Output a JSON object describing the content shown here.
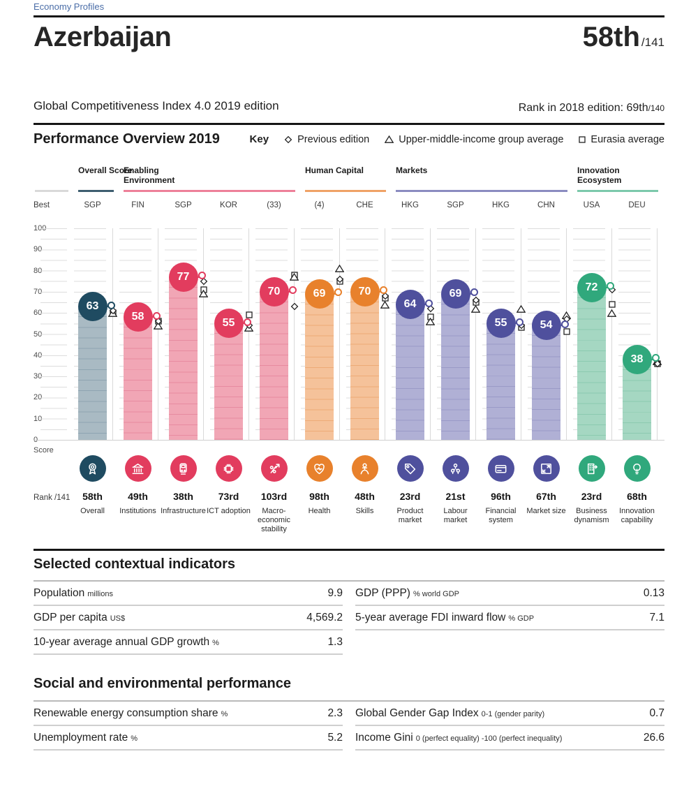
{
  "header": {
    "breadcrumb": "Economy Profiles",
    "country": "Azerbaijan",
    "rank": "58th",
    "rank_total": "/141",
    "subtitle": "Global Competitiveness Index 4.0 2019 edition",
    "previous_rank_label": "Rank in 2018 edition: 69th",
    "previous_rank_total": "/140"
  },
  "overview": {
    "title": "Performance Overview 2019",
    "key_label": "Key",
    "legend": [
      {
        "icon": "diamond-icon",
        "label": "Previous edition"
      },
      {
        "icon": "triangle-icon",
        "label": "Upper-middle-income group average"
      },
      {
        "icon": "square-icon",
        "label": "Eurasia average"
      }
    ]
  },
  "chart_data": {
    "type": "bar",
    "title": "Performance Overview 2019",
    "ylabel": "Score",
    "ylim": [
      0,
      100
    ],
    "ytick_step": 10,
    "grid": true,
    "best_row_label": "Best",
    "rank_row_label": "Rank /141",
    "legend_series": [
      "Previous edition",
      "Upper-middle-income group average",
      "Eurasia average"
    ],
    "groups": [
      {
        "label": "Overall Score",
        "line_color": "#3f5e70",
        "bubble_color": "#1f4b61",
        "bar_color": "#a9bac3",
        "stripe_color": "#8ea4b1",
        "start": 0,
        "count": 1
      },
      {
        "label": "Enabling Environment",
        "line_color": "#ed8099",
        "bubble_color": "#e23c5e",
        "bar_color": "#f1a6b5",
        "stripe_color": "#e78ba0",
        "start": 1,
        "count": 4
      },
      {
        "label": "Human Capital",
        "line_color": "#efa266",
        "bubble_color": "#e8812c",
        "bar_color": "#f5c29a",
        "stripe_color": "#edab77",
        "start": 5,
        "count": 2
      },
      {
        "label": "Markets",
        "line_color": "#8b8cc0",
        "bubble_color": "#4f509d",
        "bar_color": "#b0b0d5",
        "stripe_color": "#9a9ac7",
        "start": 7,
        "count": 4
      },
      {
        "label": "Innovation Ecosystem",
        "line_color": "#7cc9ab",
        "bubble_color": "#30a87c",
        "bar_color": "#a5d7c2",
        "stripe_color": "#8ccab0",
        "start": 11,
        "count": 2
      }
    ],
    "pillars": [
      {
        "name": "Overall",
        "best": "SGP",
        "rank": "58th",
        "score": 63,
        "previous": 61,
        "group_avg": 60,
        "eurasia_avg": 60,
        "icon": "medal-icon",
        "group": 0
      },
      {
        "name": "Institutions",
        "best": "FIN",
        "rank": "49th",
        "score": 58,
        "previous": 56,
        "group_avg": 54,
        "eurasia_avg": 56,
        "icon": "bank-icon",
        "group": 1
      },
      {
        "name": "Infrastructure",
        "best": "SGP",
        "rank": "38th",
        "score": 77,
        "previous": 75,
        "group_avg": 69,
        "eurasia_avg": 71,
        "icon": "train-icon",
        "group": 1
      },
      {
        "name": "ICT adoption",
        "best": "KOR",
        "rank": "73rd",
        "score": 55,
        "previous": 54,
        "group_avg": 53,
        "eurasia_avg": 59,
        "icon": "chip-icon",
        "group": 1
      },
      {
        "name": "Macro-economic stability",
        "best": "(33)",
        "rank": "103rd",
        "score": 70,
        "previous": 63,
        "group_avg": 77,
        "eurasia_avg": 78,
        "icon": "percent-arrow-icon",
        "group": 1
      },
      {
        "name": "Health",
        "best": "(4)",
        "rank": "98th",
        "score": 69,
        "previous": 76,
        "group_avg": 81,
        "eurasia_avg": 75,
        "icon": "heart-pulse-icon",
        "group": 2
      },
      {
        "name": "Skills",
        "best": "CHE",
        "rank": "48th",
        "score": 70,
        "previous": 68,
        "group_avg": 64,
        "eurasia_avg": 67,
        "icon": "person-podium-icon",
        "group": 2
      },
      {
        "name": "Product market",
        "best": "HKG",
        "rank": "23rd",
        "score": 64,
        "previous": 62,
        "group_avg": 56,
        "eurasia_avg": 58,
        "icon": "price-tag-icon",
        "group": 3
      },
      {
        "name": "Labour market",
        "best": "SGP",
        "rank": "21st",
        "score": 69,
        "previous": 66,
        "group_avg": 62,
        "eurasia_avg": 65,
        "icon": "people-network-icon",
        "group": 3
      },
      {
        "name": "Financial system",
        "best": "HKG",
        "rank": "96th",
        "score": 55,
        "previous": 54,
        "group_avg": 62,
        "eurasia_avg": 53,
        "icon": "bank-card-icon",
        "group": 3
      },
      {
        "name": "Market size",
        "best": "CHN",
        "rank": "67th",
        "score": 54,
        "previous": 57,
        "group_avg": 59,
        "eurasia_avg": 51,
        "icon": "expand-arrows-icon",
        "group": 3
      },
      {
        "name": "Business dynamism",
        "best": "USA",
        "rank": "23rd",
        "score": 72,
        "previous": 71,
        "group_avg": 60,
        "eurasia_avg": 64,
        "icon": "building-arrow-icon",
        "group": 4
      },
      {
        "name": "Innovation capability",
        "best": "DEU",
        "rank": "68th",
        "score": 38,
        "previous": 36,
        "group_avg": 37,
        "eurasia_avg": 36,
        "icon": "lightbulb-icon",
        "group": 4
      }
    ]
  },
  "contextual": {
    "title": "Selected contextual indicators",
    "left": [
      {
        "label": "Population",
        "unit": "millions",
        "value": "9.9"
      },
      {
        "label": "GDP per capita",
        "unit": "US$",
        "value": "4,569.2"
      },
      {
        "label": "10-year average annual GDP growth",
        "unit": "%",
        "value": "1.3"
      }
    ],
    "right": [
      {
        "label": "GDP (PPP)",
        "unit": "% world GDP",
        "value": "0.13"
      },
      {
        "label": "5-year average FDI inward flow",
        "unit": "% GDP",
        "value": "7.1"
      }
    ]
  },
  "social": {
    "title": "Social and environmental performance",
    "left": [
      {
        "label": "Renewable energy consumption share",
        "unit": "%",
        "value": "2.3"
      },
      {
        "label": "Unemployment rate",
        "unit": "%",
        "value": "5.2"
      }
    ],
    "right": [
      {
        "label": "Global Gender Gap Index",
        "unit": "0-1 (gender parity)",
        "value": "0.7"
      },
      {
        "label": "Income Gini",
        "unit": "0 (perfect equality) -100 (perfect inequality)",
        "value": "26.6"
      }
    ]
  }
}
